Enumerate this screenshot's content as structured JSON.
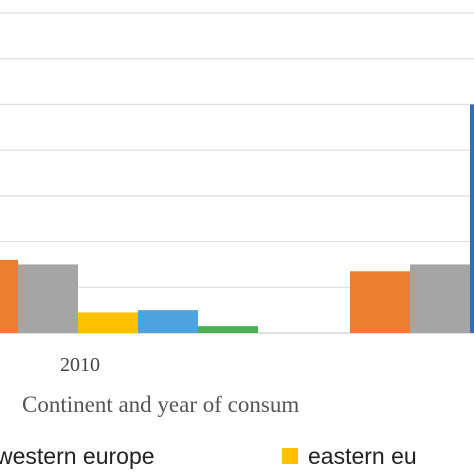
{
  "chart_data": {
    "type": "bar",
    "categories": [
      "2010",
      ""
    ],
    "series": [
      {
        "name": "western europe",
        "color": "#ED7D31",
        "values": [
          3.2,
          2.7
        ]
      },
      {
        "name": "",
        "color": "#A5A5A5",
        "values": [
          3.0,
          3.0
        ]
      },
      {
        "name": "eastern eu",
        "color": "#FFC000",
        "values": [
          0.9,
          null
        ]
      },
      {
        "name": "",
        "color": "#4CA3DD",
        "values": [
          1.0,
          null
        ]
      },
      {
        "name": "",
        "color": "#4CAF50",
        "values": [
          0.3,
          null
        ]
      },
      {
        "name": "",
        "color": "#2E6FBF",
        "values": [
          null,
          10.0
        ]
      }
    ],
    "xlabel": "Continent and year of consum",
    "ylim": [
      0,
      14
    ],
    "grid": true,
    "legend_position": "bottom"
  }
}
